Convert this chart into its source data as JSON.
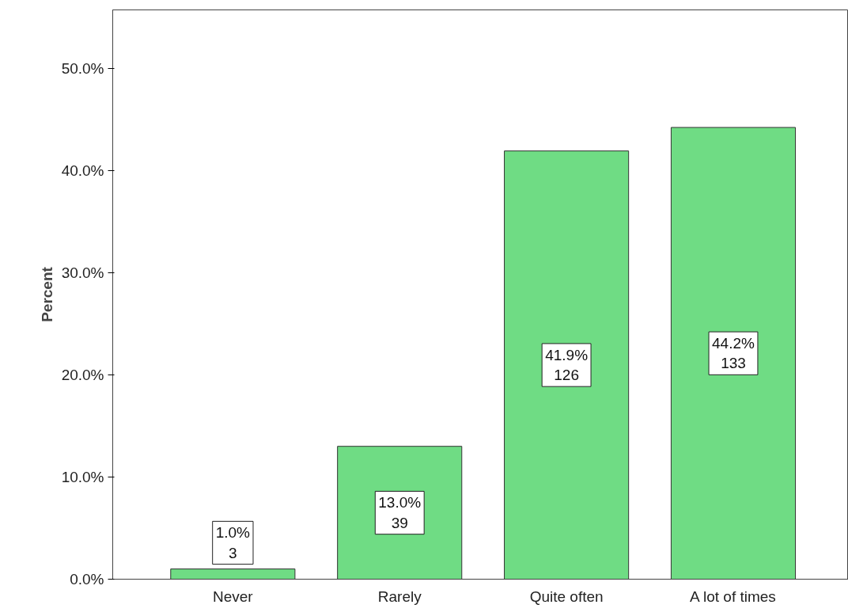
{
  "chart_data": {
    "type": "bar",
    "ylabel": "Percent",
    "categories": [
      "Never",
      "Rarely",
      "Quite often",
      "A lot of times"
    ],
    "values": [
      1.0,
      13.0,
      41.9,
      44.2
    ],
    "color": "#6fdc84",
    "value_labels": [
      "1.0%\n3",
      "13.0%\n39",
      "41.9%\n126",
      "44.2%\n133"
    ],
    "ylim": [
      0,
      55.7
    ],
    "yticks": [
      {
        "value": 0,
        "label": "0.0%"
      },
      {
        "value": 10,
        "label": "10.0%"
      },
      {
        "value": 20,
        "label": "20.0%"
      },
      {
        "value": 30,
        "label": "30.0%"
      },
      {
        "value": 40,
        "label": "40.0%"
      },
      {
        "value": 50,
        "label": "50.0%"
      }
    ],
    "grid": false
  }
}
